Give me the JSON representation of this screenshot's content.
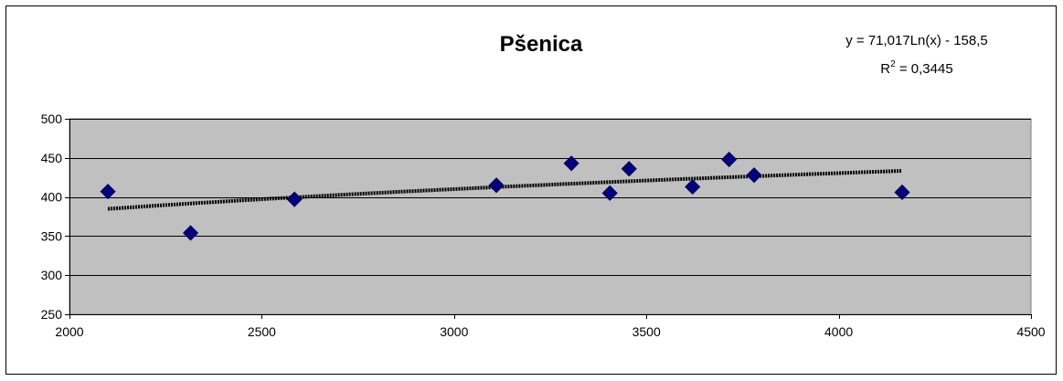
{
  "chart_data": {
    "type": "scatter",
    "title": "Pšenica",
    "xlabel": "",
    "ylabel": "",
    "xlim": [
      2000,
      4500
    ],
    "ylim": [
      250,
      500
    ],
    "xticks": [
      "2000",
      "2500",
      "3000",
      "3500",
      "4000",
      "4500"
    ],
    "yticks": [
      "250",
      "300",
      "350",
      "400",
      "450",
      "500"
    ],
    "grid": true,
    "plot_background": "#c0c0c0",
    "marker_color": "#000080",
    "trendline_color": "#000000",
    "trendline": {
      "type": "logarithmic",
      "equation": "y = 71,017Ln(x) - 158,5",
      "r2_prefix": "R",
      "r2_sup": "2",
      "r2_value": " = 0,3445",
      "a": 71.017,
      "b": -158.5,
      "x_from": 2100,
      "x_to": 4165
    },
    "points": [
      {
        "x": 2100,
        "y": 407
      },
      {
        "x": 2315,
        "y": 354
      },
      {
        "x": 2585,
        "y": 397
      },
      {
        "x": 3110,
        "y": 415
      },
      {
        "x": 3305,
        "y": 443
      },
      {
        "x": 3405,
        "y": 405
      },
      {
        "x": 3455,
        "y": 436
      },
      {
        "x": 3620,
        "y": 413
      },
      {
        "x": 3715,
        "y": 448
      },
      {
        "x": 3780,
        "y": 428
      },
      {
        "x": 4165,
        "y": 406
      }
    ]
  }
}
